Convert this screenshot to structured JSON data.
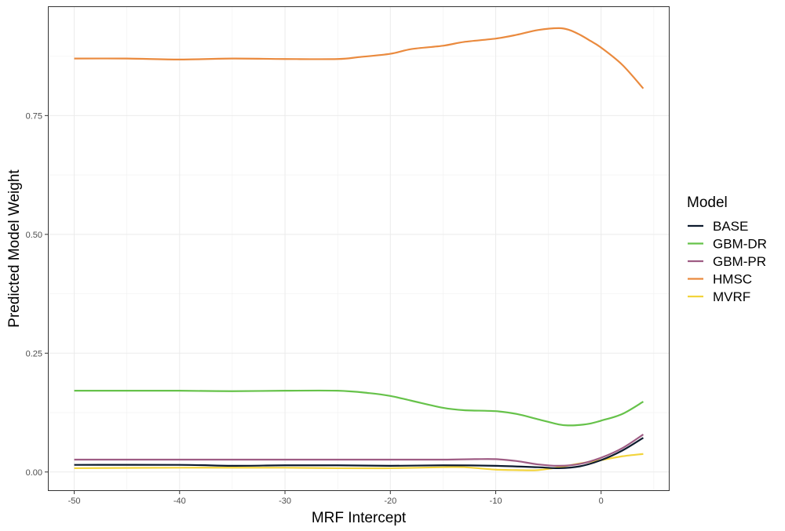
{
  "chart_data": {
    "type": "line",
    "xlabel": "MRF Intercept",
    "ylabel": "Predicted Model Weight",
    "xlim": [
      -52.5,
      6.5
    ],
    "ylim": [
      -0.04,
      0.98
    ],
    "x_ticks": [
      -50,
      -40,
      -30,
      -20,
      -10,
      0
    ],
    "x_tick_labels": [
      "-50",
      "-40",
      "-30",
      "-20",
      "-10",
      "0"
    ],
    "y_ticks": [
      0.0,
      0.25,
      0.5,
      0.75
    ],
    "y_tick_labels": [
      "0.00",
      "0.25",
      "0.50",
      "0.75"
    ],
    "grid": true,
    "legend": {
      "title": "Model",
      "position": "right"
    },
    "series": [
      {
        "name": "BASE",
        "color": "#0d1b2e",
        "x": [
          -50,
          -40,
          -35,
          -30,
          -25,
          -20,
          -15,
          -10,
          -6,
          -4,
          -2,
          0,
          2,
          4
        ],
        "y": [
          0.015,
          0.015,
          0.013,
          0.014,
          0.014,
          0.013,
          0.014,
          0.013,
          0.01,
          0.008,
          0.012,
          0.025,
          0.045,
          0.072
        ]
      },
      {
        "name": "GBM-DR",
        "color": "#66c24a",
        "x": [
          -50,
          -40,
          -35,
          -30,
          -25,
          -22,
          -20,
          -18,
          -15,
          -13,
          -10,
          -8,
          -6,
          -4,
          -3,
          -2,
          -1,
          0,
          2,
          4
        ],
        "y": [
          0.171,
          0.171,
          0.17,
          0.171,
          0.171,
          0.166,
          0.16,
          0.15,
          0.135,
          0.13,
          0.128,
          0.122,
          0.111,
          0.1,
          0.098,
          0.099,
          0.102,
          0.108,
          0.122,
          0.148
        ]
      },
      {
        "name": "GBM-PR",
        "color": "#9e5c84",
        "x": [
          -50,
          -40,
          -30,
          -20,
          -15,
          -12,
          -10,
          -8,
          -6,
          -4,
          -2,
          0,
          2,
          4
        ],
        "y": [
          0.026,
          0.026,
          0.026,
          0.026,
          0.026,
          0.027,
          0.027,
          0.023,
          0.016,
          0.013,
          0.017,
          0.03,
          0.05,
          0.079
        ]
      },
      {
        "name": "HMSC",
        "color": "#ea8a3e",
        "x": [
          -50,
          -45,
          -40,
          -35,
          -30,
          -25,
          -23,
          -20,
          -18,
          -15,
          -13,
          -10,
          -8,
          -6,
          -4,
          -3,
          -2,
          -1,
          0,
          2,
          4
        ],
        "y": [
          0.87,
          0.87,
          0.868,
          0.87,
          0.869,
          0.869,
          0.873,
          0.88,
          0.89,
          0.897,
          0.905,
          0.912,
          0.92,
          0.93,
          0.934,
          0.93,
          0.92,
          0.907,
          0.893,
          0.857,
          0.807
        ]
      },
      {
        "name": "MVRF",
        "color": "#f2d43c",
        "x": [
          -50,
          -40,
          -30,
          -25,
          -20,
          -15,
          -13,
          -10,
          -8,
          -6,
          -4,
          -2,
          0,
          2,
          4
        ],
        "y": [
          0.008,
          0.009,
          0.009,
          0.008,
          0.008,
          0.01,
          0.01,
          0.005,
          0.004,
          0.004,
          0.01,
          0.018,
          0.025,
          0.033,
          0.038
        ]
      }
    ]
  }
}
